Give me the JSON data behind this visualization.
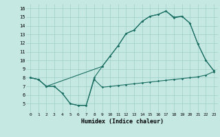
{
  "xlabel": "Humidex (Indice chaleur)",
  "xlim": [
    -0.5,
    23.5
  ],
  "ylim": [
    4,
    16.5
  ],
  "xticks": [
    0,
    1,
    2,
    3,
    4,
    5,
    6,
    7,
    8,
    9,
    10,
    11,
    12,
    13,
    14,
    15,
    16,
    17,
    18,
    19,
    20,
    21,
    22,
    23
  ],
  "yticks": [
    5,
    6,
    7,
    8,
    9,
    10,
    11,
    12,
    13,
    14,
    15,
    16
  ],
  "bg_color": "#c5e8e2",
  "grid_color": "#9ecfc8",
  "line_color": "#1a6e62",
  "line1_x": [
    0,
    1,
    2,
    3,
    4,
    5,
    6,
    7,
    8,
    9,
    10,
    11,
    12,
    13,
    14,
    15,
    16,
    17,
    18,
    19,
    20,
    21,
    22,
    23
  ],
  "line1_y": [
    8.0,
    7.8,
    7.0,
    7.0,
    6.2,
    5.0,
    4.8,
    4.8,
    7.8,
    6.9,
    7.0,
    7.1,
    7.2,
    7.3,
    7.4,
    7.5,
    7.6,
    7.7,
    7.8,
    7.9,
    8.0,
    8.1,
    8.3,
    8.7
  ],
  "line2_x": [
    0,
    1,
    2,
    3,
    4,
    5,
    6,
    7,
    8,
    9,
    10,
    11,
    12,
    13,
    14,
    15,
    16,
    17,
    18,
    19,
    20,
    21,
    22,
    23
  ],
  "line2_y": [
    8.0,
    7.8,
    7.0,
    7.0,
    6.2,
    5.0,
    4.8,
    4.8,
    8.0,
    9.3,
    10.5,
    11.7,
    13.1,
    13.5,
    14.5,
    15.1,
    15.3,
    15.7,
    15.0,
    15.1,
    14.3,
    11.9,
    10.0,
    8.8
  ],
  "line3_x": [
    0,
    1,
    2,
    9,
    10,
    11,
    12,
    13,
    14,
    15,
    16,
    17,
    18,
    19,
    20,
    21,
    22,
    23
  ],
  "line3_y": [
    8.0,
    7.8,
    7.0,
    9.3,
    10.5,
    11.7,
    13.1,
    13.5,
    14.5,
    15.1,
    15.3,
    15.7,
    14.9,
    15.1,
    14.3,
    11.9,
    10.0,
    8.8
  ]
}
